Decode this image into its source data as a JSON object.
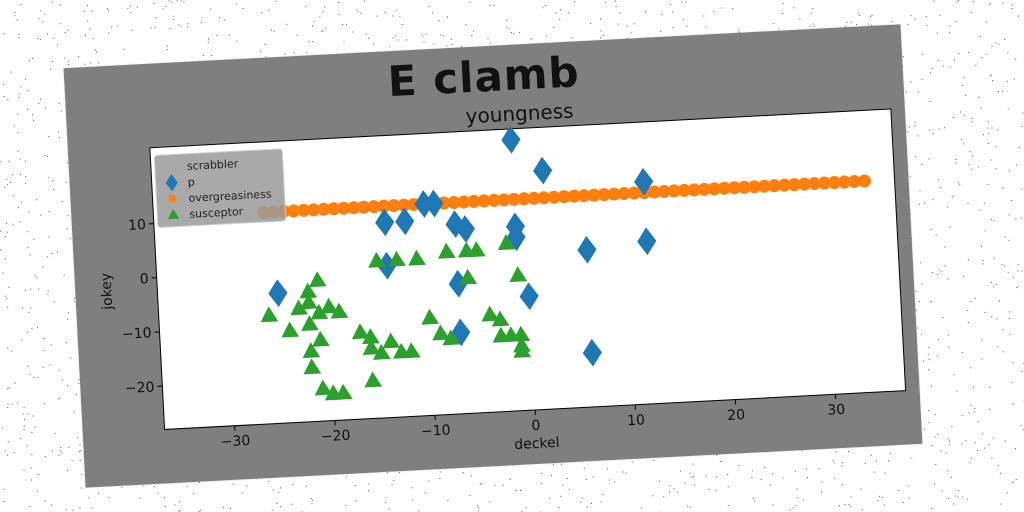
{
  "figure": {
    "suptitle": "E clamb"
  },
  "colors": {
    "figure_bg": "#7f7f7f",
    "axes_bg": "#ffffff",
    "p": "#1f77b4",
    "overgreasiness": "#ff7f0e",
    "susceptor": "#2ca02c"
  },
  "chart_data": {
    "type": "scatter",
    "title": "youngness",
    "xlabel": "deckel",
    "ylabel": "jokey",
    "xlim": [
      -37,
      37
    ],
    "ylim": [
      -28,
      24
    ],
    "xticks": [
      -30,
      -20,
      -10,
      0,
      10,
      20,
      30
    ],
    "yticks": [
      -20,
      -10,
      0,
      10
    ],
    "xtick_labels": [
      "−30",
      "−20",
      "−10",
      "0",
      "10",
      "20",
      "30"
    ],
    "ytick_labels": [
      "−20",
      "−10",
      "0",
      "10"
    ],
    "grid": false,
    "legend": {
      "position": "upper-left",
      "entries": [
        {
          "name": "scrabbler",
          "marker": "none",
          "color": ""
        },
        {
          "name": "p",
          "marker": "diamond",
          "color": "#1f77b4"
        },
        {
          "name": "overgreasiness",
          "marker": "circle",
          "color": "#ff7f0e"
        },
        {
          "name": "susceptor",
          "marker": "triangle",
          "color": "#2ca02c"
        }
      ]
    },
    "series": [
      {
        "name": "scrabbler",
        "marker": "none",
        "color": "",
        "points": []
      },
      {
        "name": "p",
        "marker": "diamond",
        "color": "#1f77b4",
        "points": [
          [
            -25,
            -4
          ],
          [
            -14,
            0
          ],
          [
            -14,
            8
          ],
          [
            -12,
            8
          ],
          [
            -10,
            11
          ],
          [
            -9,
            11
          ],
          [
            -7,
            7
          ],
          [
            -6,
            6
          ],
          [
            -7,
            -4
          ],
          [
            -7,
            -13
          ],
          [
            -1,
            6
          ],
          [
            -1,
            4
          ],
          [
            -1,
            22
          ],
          [
            2,
            16
          ],
          [
            0,
            -7
          ],
          [
            6,
            1
          ],
          [
            6,
            -18
          ],
          [
            12,
            2
          ],
          [
            12,
            13
          ]
        ]
      },
      {
        "name": "overgreasiness",
        "marker": "circle",
        "color": "#ff7f0e",
        "points": [
          [
            -26,
            11
          ],
          [
            -25,
            11
          ],
          [
            -24,
            11
          ],
          [
            -23,
            11
          ],
          [
            -22,
            11
          ],
          [
            -21,
            11
          ],
          [
            -20,
            11
          ],
          [
            -19,
            11
          ],
          [
            -18,
            11
          ],
          [
            -17,
            11
          ],
          [
            -16,
            11
          ],
          [
            -15,
            11
          ],
          [
            -14,
            11
          ],
          [
            -13,
            11
          ],
          [
            -12,
            11
          ],
          [
            -11,
            11
          ],
          [
            -10,
            11
          ],
          [
            -9,
            11
          ],
          [
            -8,
            11
          ],
          [
            -7,
            11
          ],
          [
            -6,
            11
          ],
          [
            -5,
            11
          ],
          [
            -4,
            11
          ],
          [
            -3,
            11
          ],
          [
            -2,
            11
          ],
          [
            -1,
            11
          ],
          [
            0,
            11
          ],
          [
            1,
            11
          ],
          [
            2,
            11
          ],
          [
            3,
            11
          ],
          [
            4,
            11
          ],
          [
            5,
            11
          ],
          [
            6,
            11
          ],
          [
            7,
            11
          ],
          [
            8,
            11
          ],
          [
            9,
            11
          ],
          [
            10,
            11
          ],
          [
            11,
            11
          ],
          [
            12,
            11
          ],
          [
            13,
            11
          ],
          [
            14,
            11
          ],
          [
            15,
            11
          ],
          [
            16,
            11
          ],
          [
            17,
            11
          ],
          [
            18,
            11
          ],
          [
            19,
            11
          ],
          [
            20,
            11
          ],
          [
            21,
            11
          ],
          [
            22,
            11
          ],
          [
            23,
            11
          ],
          [
            24,
            11
          ],
          [
            25,
            11
          ],
          [
            26,
            11
          ],
          [
            27,
            11
          ],
          [
            28,
            11
          ],
          [
            29,
            11
          ],
          [
            30,
            11
          ],
          [
            31,
            11
          ],
          [
            32,
            11
          ],
          [
            33,
            11
          ],
          [
            34,
            11
          ]
        ]
      },
      {
        "name": "susceptor",
        "marker": "triangle",
        "color": "#2ca02c",
        "points": [
          [
            -26,
            -8
          ],
          [
            -24,
            -11
          ],
          [
            -23,
            -7
          ],
          [
            -22,
            -4
          ],
          [
            -21,
            -2
          ],
          [
            -22,
            -6
          ],
          [
            -21,
            -8
          ],
          [
            -20,
            -7
          ],
          [
            -19,
            -8
          ],
          [
            -22,
            -10
          ],
          [
            -21,
            -13
          ],
          [
            -22,
            -15
          ],
          [
            -22,
            -18
          ],
          [
            -21,
            -22
          ],
          [
            -20,
            -23
          ],
          [
            -19,
            -23
          ],
          [
            -17,
            -12
          ],
          [
            -16,
            -13
          ],
          [
            -16,
            -15
          ],
          [
            -15,
            -16
          ],
          [
            -14,
            -14
          ],
          [
            -13,
            -16
          ],
          [
            -12,
            -16
          ],
          [
            -16,
            -21
          ],
          [
            -15,
            1
          ],
          [
            -13,
            1
          ],
          [
            -11,
            1
          ],
          [
            -10,
            -10
          ],
          [
            -9,
            -13
          ],
          [
            -8,
            -14
          ],
          [
            -8,
            2
          ],
          [
            -6,
            2
          ],
          [
            -5,
            2
          ],
          [
            -6,
            -3
          ],
          [
            -4,
            -10
          ],
          [
            -3,
            -11
          ],
          [
            -3,
            -14
          ],
          [
            -2,
            -14
          ],
          [
            -1,
            -14
          ],
          [
            -1,
            -16
          ],
          [
            -1,
            -17
          ],
          [
            -1,
            -3
          ],
          [
            -2,
            3
          ]
        ]
      }
    ]
  }
}
